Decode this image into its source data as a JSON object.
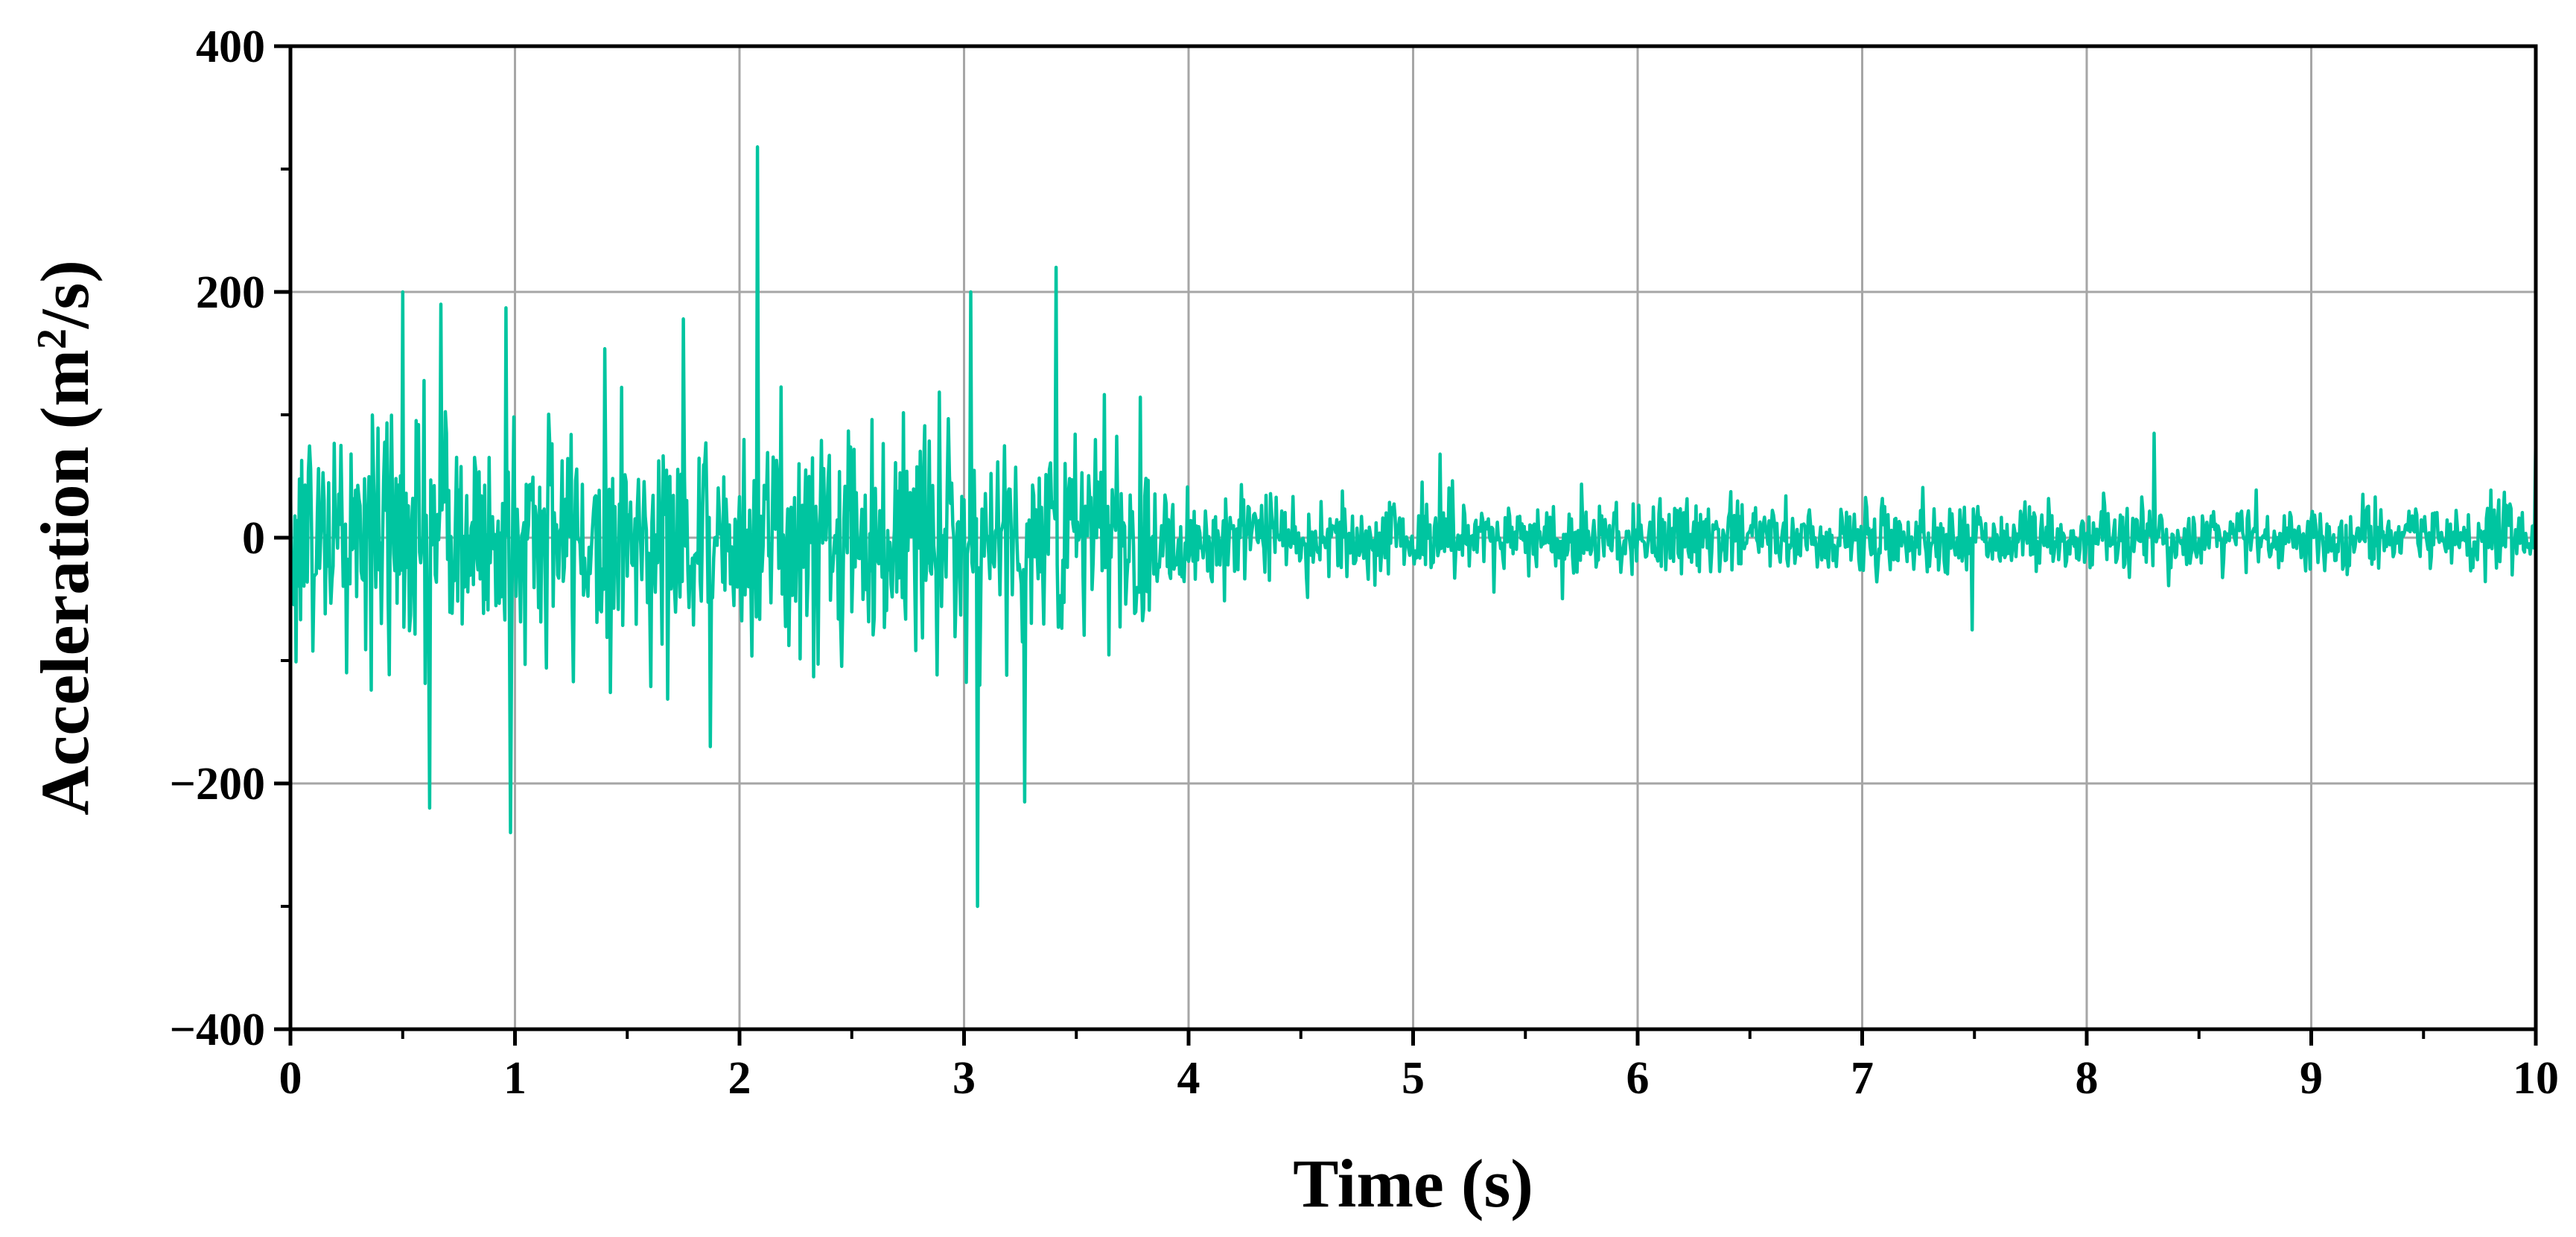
{
  "chart_data": {
    "type": "line",
    "title": "",
    "xlabel": "Time (s)",
    "ylabel_parts": [
      "Acceleration (m",
      "2",
      "/s)"
    ],
    "xlim": [
      0,
      10
    ],
    "ylim": [
      -400,
      400
    ],
    "x_ticks": [
      0,
      1,
      2,
      3,
      4,
      5,
      6,
      7,
      8,
      9,
      10
    ],
    "x_tick_labels": [
      "0",
      "1",
      "2",
      "3",
      "4",
      "5",
      "6",
      "7",
      "8",
      "9",
      "10"
    ],
    "y_ticks": [
      -400,
      -200,
      0,
      200,
      400
    ],
    "y_tick_labels": [
      "−400",
      "−200",
      "0",
      "200",
      "400"
    ],
    "grid": true,
    "legend": "none",
    "series": [
      {
        "color": "#00C5A0",
        "sample_rate_hz": 200,
        "envelope": [
          {
            "t": 0,
            "amp": 95
          },
          {
            "t": 1,
            "amp": 90
          },
          {
            "t": 2,
            "amp": 82
          },
          {
            "t": 3,
            "amp": 85
          },
          {
            "t": 3.75,
            "amp": 80
          },
          {
            "t": 4,
            "amp": 38
          },
          {
            "t": 5,
            "amp": 28
          },
          {
            "t": 10,
            "amp": 24
          }
        ],
        "peaks": [
          {
            "x": 0.5,
            "y": 200
          },
          {
            "x": 0.62,
            "y": -220
          },
          {
            "x": 0.67,
            "y": 190
          },
          {
            "x": 0.96,
            "y": 187
          },
          {
            "x": 0.98,
            "y": -240
          },
          {
            "x": 1.75,
            "y": 178
          },
          {
            "x": 1.87,
            "y": -170
          },
          {
            "x": 2.08,
            "y": 318
          },
          {
            "x": 3.03,
            "y": 200
          },
          {
            "x": 3.06,
            "y": -300
          },
          {
            "x": 3.27,
            "y": -215
          },
          {
            "x": 3.41,
            "y": 220
          },
          {
            "x": 5.12,
            "y": 68
          },
          {
            "x": 7.49,
            "y": -75
          },
          {
            "x": 8.3,
            "y": 85
          },
          {
            "x": 10.0,
            "y": 85
          }
        ]
      }
    ]
  }
}
